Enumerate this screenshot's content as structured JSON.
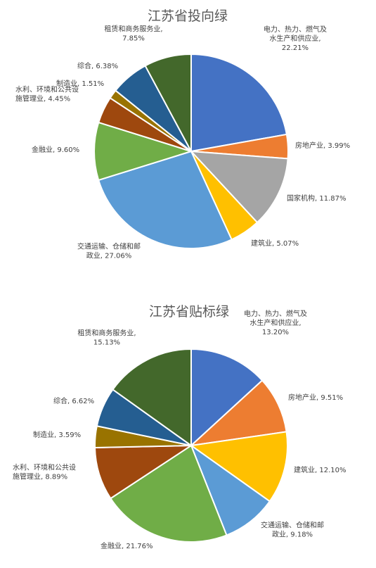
{
  "chart_data": [
    {
      "type": "pie",
      "title": "江苏省投向绿",
      "series": [
        {
          "labels": [
            [
              "电力、热力、燃气及",
              "水生产和供应业,",
              "22.21%"
            ],
            [
              "房地产业, 3.99%"
            ],
            [
              "国家机构, 11.87%"
            ],
            [
              "建筑业, 5.07%"
            ],
            [
              "交通运输、仓储和邮",
              "政业, 27.06%"
            ],
            [
              "金融业, 9.60%"
            ],
            [
              "水利、环境和公共设",
              "施管理业, 4.45%"
            ],
            [
              "制造业, 1.51%"
            ],
            [
              "综合, 6.38%"
            ],
            [
              "租赁和商务服务业,",
              "7.85%"
            ]
          ],
          "values": [
            22.21,
            3.99,
            11.87,
            5.07,
            27.06,
            9.6,
            4.45,
            1.51,
            6.38,
            7.85
          ],
          "colors": [
            "#4472C4",
            "#ED7D31",
            "#A5A5A5",
            "#FFC000",
            "#5B9BD5",
            "#70AD47",
            "#9E480E",
            "#997300",
            "#255E91",
            "#43682B"
          ]
        }
      ],
      "legend": "none"
    },
    {
      "type": "pie",
      "title": "江苏省贴标绿",
      "series": [
        {
          "labels": [
            [
              "电力、热力、燃气及",
              "水生产和供应业,",
              "13.20%"
            ],
            [
              "房地产业, 9.51%"
            ],
            [
              "建筑业, 12.10%"
            ],
            [
              "交通运输、仓储和邮",
              "政业, 9.18%"
            ],
            [
              "金融业, 21.76%"
            ],
            [
              "水利、环境和公共设",
              "施管理业, 8.89%"
            ],
            [
              "制造业, 3.59%"
            ],
            [
              "综合, 6.62%"
            ],
            [
              "租赁和商务服务业,",
              "15.13%"
            ]
          ],
          "values": [
            13.2,
            9.51,
            12.1,
            9.18,
            21.76,
            8.89,
            3.59,
            6.62,
            15.13
          ],
          "colors": [
            "#4472C4",
            "#ED7D31",
            "#FFC000",
            "#5B9BD5",
            "#70AD47",
            "#9E480E",
            "#997300",
            "#255E91",
            "#43682B"
          ]
        }
      ],
      "legend": "none"
    }
  ]
}
